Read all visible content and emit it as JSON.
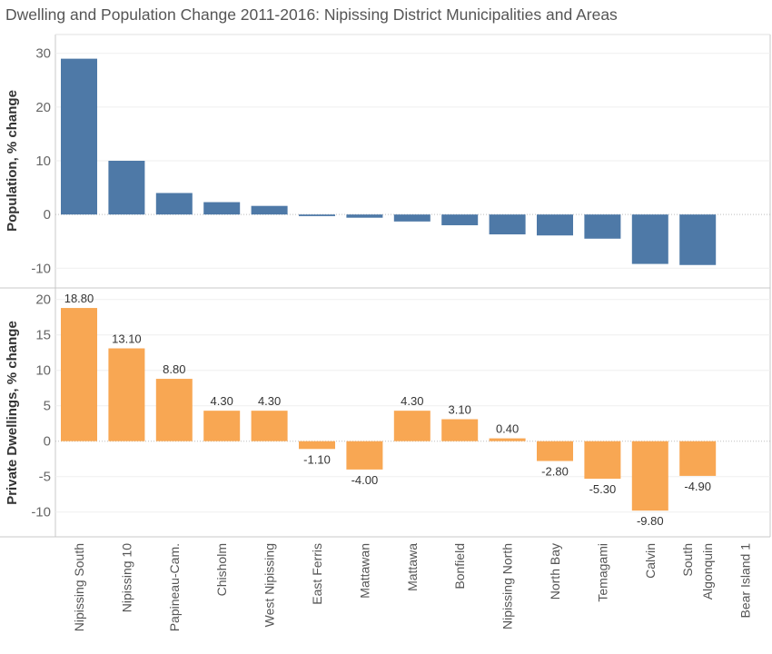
{
  "title": "Dwelling and Population Change 2011-2016: Nipissing District Municipalities and Areas",
  "colors": {
    "population": "#4e79a7",
    "dwellings": "#f8a753"
  },
  "chart_data": [
    {
      "type": "bar",
      "name": "population",
      "ylabel": "Population, % change",
      "ylim": [
        -13.5,
        33.5
      ],
      "yticks": [
        -10,
        0,
        10,
        20,
        30
      ],
      "categories": [
        "Nipissing South",
        "Nipissing 10",
        "Papineau-Cam.",
        "Chisholm",
        "West Nipissing",
        "East Ferris",
        "Mattawan",
        "Mattawa",
        "Bonfield",
        "Nipissing North",
        "North Bay",
        "Temagami",
        "Calvin",
        "South Algonquin",
        "Bear Island 1"
      ],
      "values": [
        29.0,
        10.0,
        4.0,
        2.3,
        1.6,
        -0.3,
        -0.6,
        -1.3,
        -2.0,
        -3.7,
        -3.9,
        -4.5,
        -9.2,
        -9.4,
        null
      ],
      "show_labels": false,
      "grid": true
    },
    {
      "type": "bar",
      "name": "dwellings",
      "ylabel": "Private Dwellings, % change",
      "ylim": [
        -13.5,
        21.5
      ],
      "yticks": [
        -10,
        -5,
        0,
        5,
        10,
        15,
        20
      ],
      "categories": [
        "Nipissing South",
        "Nipissing 10",
        "Papineau-Cam.",
        "Chisholm",
        "West Nipissing",
        "East Ferris",
        "Mattawan",
        "Mattawa",
        "Bonfield",
        "Nipissing North",
        "North Bay",
        "Temagami",
        "Calvin",
        "South Algonquin",
        "Bear Island 1"
      ],
      "values": [
        18.8,
        13.1,
        8.8,
        4.3,
        4.3,
        -1.1,
        -4.0,
        4.3,
        3.1,
        0.4,
        -2.8,
        -5.3,
        -9.8,
        -4.9,
        null
      ],
      "data_labels": [
        "18.80",
        "13.10",
        "8.80",
        "4.30",
        "4.30",
        "-1.10",
        "-4.00",
        "4.30",
        "3.10",
        "0.40",
        "-2.80",
        "-5.30",
        "-9.80",
        "-4.90",
        ""
      ],
      "show_labels": true,
      "grid": true
    }
  ],
  "x_axis_labels": [
    [
      "Nipissing South"
    ],
    [
      "Nipissing 10"
    ],
    [
      "Papineau-Cam."
    ],
    [
      "Chisholm"
    ],
    [
      "West Nipissing"
    ],
    [
      "East Ferris"
    ],
    [
      "Mattawan"
    ],
    [
      "Mattawa"
    ],
    [
      "Bonfield"
    ],
    [
      "Nipissing North"
    ],
    [
      "North Bay"
    ],
    [
      "Temagami"
    ],
    [
      "Calvin"
    ],
    [
      "South",
      "Algonquin"
    ],
    [
      "Bear Island 1"
    ]
  ]
}
